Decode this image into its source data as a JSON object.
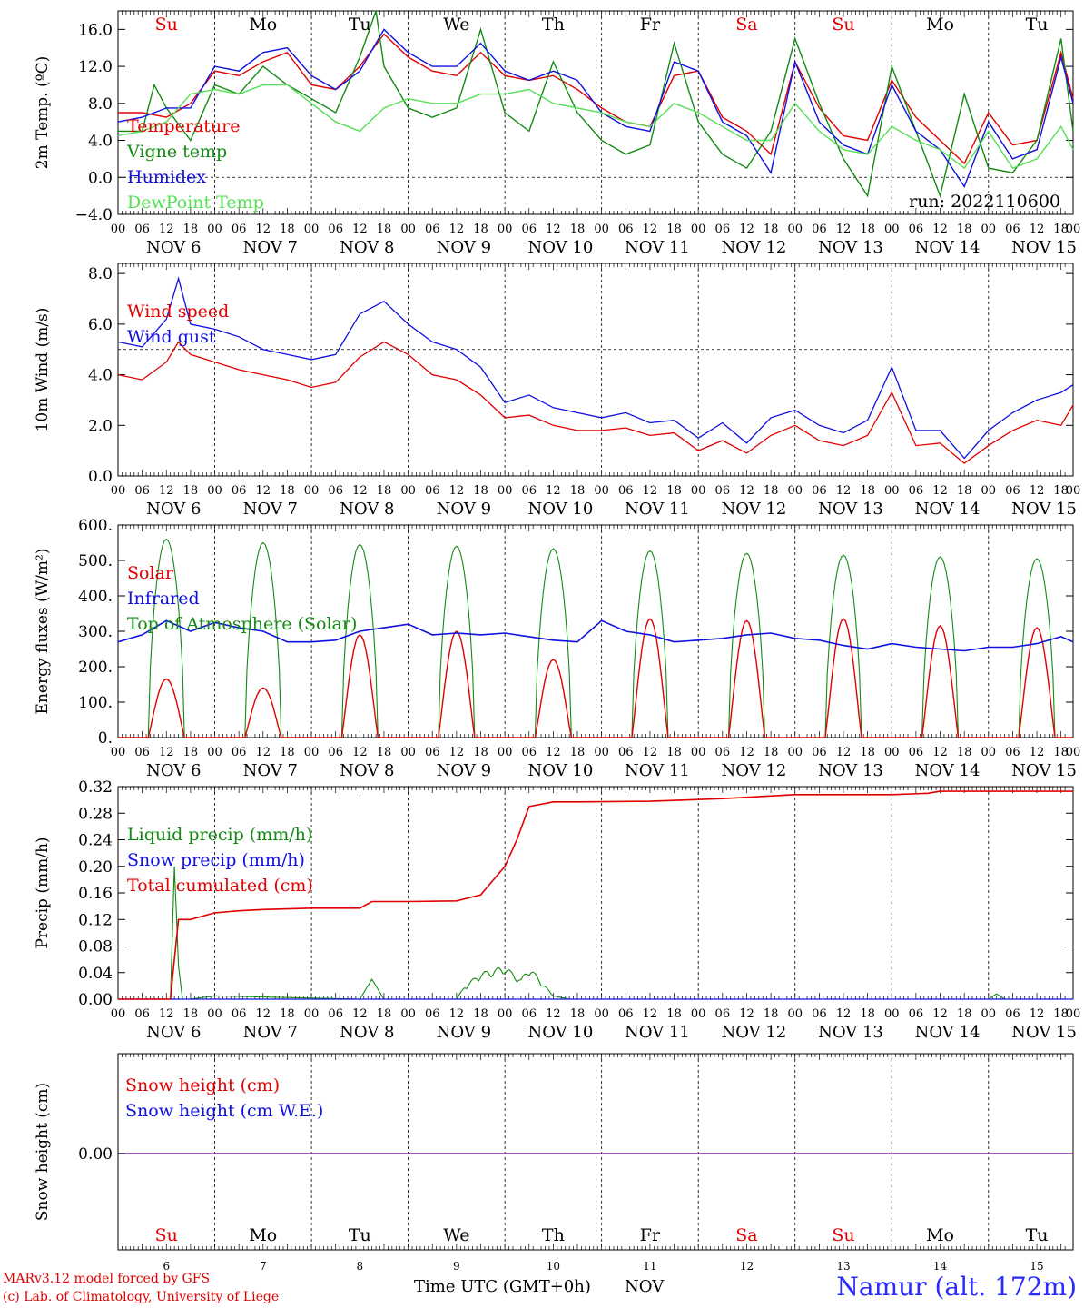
{
  "footer": {
    "credit1": "MARv3.12 model forced by GFS",
    "credit2": "(c) Lab. of Climatology, University of Liege",
    "xlabel": "Time UTC (GMT+0h)",
    "month": "NOV",
    "station": "Namur (alt. 172m)",
    "run": "run: 2022110600"
  },
  "axis": {
    "hour_ticks": [
      "00",
      "06",
      "12",
      "18"
    ],
    "day_labels": [
      "NOV  6",
      "NOV  7",
      "NOV  8",
      "NOV  9",
      "NOV 10",
      "NOV 11",
      "NOV 12",
      "NOV 13",
      "NOV 14",
      "NOV 15"
    ],
    "weekdays": [
      "Su",
      "Mo",
      "Tu",
      "We",
      "Th",
      "Fr",
      "Sa",
      "Su",
      "Mo",
      "Tu"
    ],
    "weekday_colors": [
      "#e00000",
      "#000000",
      "#000000",
      "#000000",
      "#000000",
      "#000000",
      "#e00000",
      "#e00000",
      "#000000",
      "#000000"
    ],
    "day_numbers": [
      "6",
      "7",
      "8",
      "9",
      "10",
      "11",
      "12",
      "13",
      "14",
      "15"
    ]
  },
  "chart_data": [
    {
      "type": "line",
      "ylabel": "2m Temp. (ºC)",
      "ylim": [
        -4,
        18
      ],
      "yticks": [
        "16.0",
        "12.0",
        "8.0",
        "4.0",
        "0.0",
        "−4.0"
      ],
      "ytick_values": [
        16,
        12,
        8,
        4,
        0,
        -4
      ],
      "ref_line": 0,
      "x_unit": "hours since NOV 6 00 UTC",
      "series": [
        {
          "name": "Temperature",
          "color": "#e00000",
          "x": [
            0,
            6,
            12,
            18,
            24,
            30,
            36,
            42,
            48,
            54,
            60,
            66,
            72,
            78,
            84,
            90,
            96,
            102,
            108,
            114,
            120,
            126,
            132,
            138,
            144,
            150,
            156,
            162,
            168,
            174,
            180,
            186,
            192,
            198,
            204,
            210,
            216,
            222,
            228,
            234,
            237
          ],
          "y": [
            7,
            7,
            6.5,
            8,
            11.5,
            11,
            12.5,
            13.5,
            10,
            9.5,
            12,
            15.5,
            13,
            11.5,
            11,
            13.5,
            11,
            10.5,
            11,
            9.5,
            7.5,
            6,
            5.5,
            11,
            11.5,
            6.5,
            5,
            2.5,
            12.5,
            7.5,
            4.5,
            4,
            10.5,
            6.5,
            4,
            1.5,
            7,
            3.5,
            4,
            13.5,
            8.5
          ]
        },
        {
          "name": "Vigne temp",
          "color": "#138a13",
          "x": [
            0,
            6,
            9,
            12,
            18,
            24,
            30,
            36,
            42,
            48,
            54,
            60,
            64,
            66,
            72,
            78,
            84,
            90,
            96,
            102,
            108,
            114,
            120,
            126,
            132,
            138,
            144,
            150,
            156,
            162,
            168,
            174,
            180,
            186,
            192,
            198,
            204,
            210,
            216,
            222,
            228,
            234,
            237
          ],
          "y": [
            5,
            5,
            10,
            7.5,
            4,
            10,
            9,
            12,
            10,
            8.5,
            7,
            13,
            18,
            12,
            7.5,
            6.5,
            7.5,
            16,
            7,
            5,
            12.5,
            7,
            4,
            2.5,
            3.5,
            14.5,
            6,
            2.5,
            1,
            5,
            15,
            8,
            2,
            -2,
            12,
            5,
            -2,
            9,
            1,
            0.5,
            4,
            15,
            5
          ]
        },
        {
          "name": "Humidex",
          "color": "#1010e0",
          "x": [
            0,
            6,
            12,
            18,
            24,
            30,
            36,
            42,
            48,
            54,
            60,
            66,
            72,
            78,
            84,
            90,
            96,
            102,
            108,
            114,
            120,
            126,
            132,
            138,
            144,
            150,
            156,
            162,
            168,
            174,
            180,
            186,
            192,
            198,
            204,
            210,
            216,
            222,
            228,
            234,
            237
          ],
          "y": [
            6,
            6.5,
            7.5,
            7.5,
            12,
            11.5,
            13.5,
            14,
            11,
            9.5,
            11.5,
            16,
            13.5,
            12,
            12,
            14.5,
            11.5,
            10.5,
            11.5,
            10.5,
            7,
            5.5,
            5,
            12.5,
            11.5,
            6,
            4.5,
            0.5,
            12.5,
            6,
            3.5,
            2.5,
            10,
            5,
            3,
            -1,
            6,
            2,
            3,
            13,
            8
          ]
        },
        {
          "name": "DewPoint Temp",
          "color": "#55e055",
          "x": [
            0,
            6,
            12,
            18,
            24,
            30,
            36,
            42,
            48,
            54,
            60,
            66,
            72,
            78,
            84,
            90,
            96,
            102,
            108,
            114,
            120,
            126,
            132,
            138,
            144,
            150,
            156,
            162,
            168,
            174,
            180,
            186,
            192,
            198,
            204,
            210,
            216,
            222,
            228,
            234,
            237
          ],
          "y": [
            4.5,
            5,
            6,
            9,
            9.5,
            9,
            10,
            10,
            8,
            6,
            5,
            7.5,
            8.5,
            8,
            8,
            9,
            9,
            9.5,
            8,
            7.5,
            7,
            6,
            5.5,
            8,
            7,
            5.5,
            4,
            4,
            8,
            5,
            3,
            2.5,
            5.5,
            4,
            3,
            1,
            5,
            1,
            2,
            5.5,
            3
          ]
        }
      ]
    },
    {
      "type": "line",
      "ylabel": "10m Wind (m/s)",
      "ylim": [
        0,
        8.4
      ],
      "yticks": [
        "8.0",
        "6.0",
        "4.0",
        "2.0",
        "0.0"
      ],
      "ytick_values": [
        8,
        6,
        4,
        2,
        0
      ],
      "ref_line": 5,
      "series": [
        {
          "name": "Wind speed",
          "color": "#e00000",
          "x": [
            0,
            6,
            12,
            15,
            18,
            24,
            30,
            36,
            42,
            48,
            54,
            60,
            66,
            72,
            78,
            84,
            90,
            96,
            102,
            108,
            114,
            120,
            126,
            132,
            138,
            144,
            150,
            156,
            162,
            168,
            174,
            180,
            186,
            192,
            198,
            204,
            210,
            216,
            222,
            228,
            234,
            237
          ],
          "y": [
            4,
            3.8,
            4.5,
            5.3,
            4.8,
            4.5,
            4.2,
            4.0,
            3.8,
            3.5,
            3.7,
            4.7,
            5.3,
            4.8,
            4.0,
            3.8,
            3.2,
            2.3,
            2.4,
            2.0,
            1.8,
            1.8,
            1.9,
            1.6,
            1.7,
            1.0,
            1.4,
            0.9,
            1.6,
            2.0,
            1.4,
            1.2,
            1.6,
            3.3,
            1.2,
            1.3,
            0.5,
            1.2,
            1.8,
            2.2,
            2.0,
            2.8
          ]
        },
        {
          "name": "Wind gust",
          "color": "#1010e0",
          "x": [
            0,
            6,
            12,
            15,
            18,
            24,
            30,
            36,
            42,
            48,
            54,
            60,
            66,
            72,
            78,
            84,
            90,
            96,
            102,
            108,
            114,
            120,
            126,
            132,
            138,
            144,
            150,
            156,
            162,
            168,
            174,
            180,
            186,
            192,
            198,
            204,
            210,
            216,
            222,
            228,
            234,
            237
          ],
          "y": [
            5.3,
            5.1,
            6.2,
            7.8,
            6.0,
            5.8,
            5.5,
            5.0,
            4.8,
            4.6,
            4.8,
            6.4,
            6.9,
            6.0,
            5.3,
            5.0,
            4.3,
            2.9,
            3.2,
            2.7,
            2.5,
            2.3,
            2.5,
            2.1,
            2.2,
            1.5,
            2.1,
            1.3,
            2.3,
            2.6,
            2.0,
            1.7,
            2.2,
            4.3,
            1.8,
            1.8,
            0.7,
            1.8,
            2.5,
            3.0,
            3.3,
            3.6
          ]
        }
      ]
    },
    {
      "type": "line",
      "ylabel": "Energy fluxes (W/m²)",
      "ylim": [
        0,
        600
      ],
      "yticks": [
        "600.",
        "500.",
        "400.",
        "300.",
        "200.",
        "100.",
        "0."
      ],
      "ytick_values": [
        600,
        500,
        400,
        300,
        200,
        100,
        0
      ],
      "solar_peaks": [
        165,
        140,
        290,
        300,
        220,
        335,
        330,
        335,
        315,
        310
      ],
      "toa_peaks": [
        560,
        550,
        545,
        540,
        533,
        527,
        520,
        515,
        510,
        505
      ],
      "infrared": {
        "x": [
          0,
          6,
          12,
          18,
          24,
          30,
          36,
          42,
          48,
          54,
          60,
          66,
          72,
          78,
          84,
          90,
          96,
          102,
          108,
          114,
          120,
          126,
          132,
          138,
          144,
          150,
          156,
          162,
          168,
          174,
          180,
          186,
          192,
          198,
          204,
          210,
          216,
          222,
          228,
          234,
          237
        ],
        "y": [
          270,
          290,
          330,
          300,
          325,
          310,
          300,
          270,
          270,
          275,
          300,
          310,
          320,
          290,
          295,
          290,
          295,
          285,
          275,
          270,
          330,
          300,
          290,
          270,
          275,
          280,
          290,
          295,
          280,
          275,
          260,
          250,
          265,
          255,
          250,
          245,
          255,
          255,
          265,
          285,
          270
        ]
      },
      "series": [
        {
          "name": "Solar",
          "color": "#e00000"
        },
        {
          "name": "Infrared",
          "color": "#1010e0"
        },
        {
          "name": "Top of Atmosphere (Solar)",
          "color": "#138a13"
        }
      ]
    },
    {
      "type": "line",
      "ylabel": "Precip (mm/h)",
      "ylim": [
        0,
        0.32
      ],
      "yticks": [
        "0.32",
        "0.28",
        "0.24",
        "0.20",
        "0.16",
        "0.12",
        "0.08",
        "0.04",
        "0.00"
      ],
      "ytick_values": [
        0.32,
        0.28,
        0.24,
        0.2,
        0.16,
        0.12,
        0.08,
        0.04,
        0.0
      ],
      "liquid": {
        "x": [
          0,
          13,
          14,
          15,
          16,
          18,
          24,
          60,
          63,
          64,
          66,
          84,
          86,
          90,
          96,
          100,
          102,
          108,
          112,
          114,
          216,
          218,
          220,
          237
        ],
        "y": [
          0,
          0,
          0.2,
          0.05,
          0,
          0,
          0.005,
          0,
          0.03,
          0.02,
          0,
          0,
          0.02,
          0.04,
          0.05,
          0.03,
          0.05,
          0.005,
          0,
          0,
          0,
          0.008,
          0,
          0
        ]
      },
      "series": [
        {
          "name": "Liquid precip (mm/h)",
          "color": "#138a13"
        },
        {
          "name": "Snow precip (mm/h)",
          "color": "#1010e0"
        },
        {
          "name": "Total cumulated (cm)",
          "color": "#e00000",
          "x": [
            0,
            13,
            14,
            15,
            18,
            24,
            30,
            36,
            48,
            60,
            63,
            72,
            84,
            90,
            96,
            99,
            102,
            108,
            114,
            132,
            150,
            168,
            192,
            201,
            204,
            216,
            237
          ],
          "y": [
            0,
            0,
            0.06,
            0.12,
            0.12,
            0.13,
            0.133,
            0.135,
            0.137,
            0.137,
            0.147,
            0.147,
            0.148,
            0.157,
            0.2,
            0.24,
            0.29,
            0.297,
            0.297,
            0.298,
            0.302,
            0.308,
            0.308,
            0.31,
            0.313,
            0.313,
            0.313
          ]
        }
      ]
    },
    {
      "type": "line",
      "ylabel": "Snow height (cm)",
      "yticks": [
        "0.00"
      ],
      "series": [
        {
          "name": "Snow height (cm)",
          "color": "#e00000",
          "x": [
            0,
            237
          ],
          "y": [
            0,
            0
          ]
        },
        {
          "name": "Snow height (cm W.E.)",
          "color": "#1010e0",
          "x": [
            0,
            237
          ],
          "y": [
            0,
            0
          ]
        }
      ]
    }
  ]
}
